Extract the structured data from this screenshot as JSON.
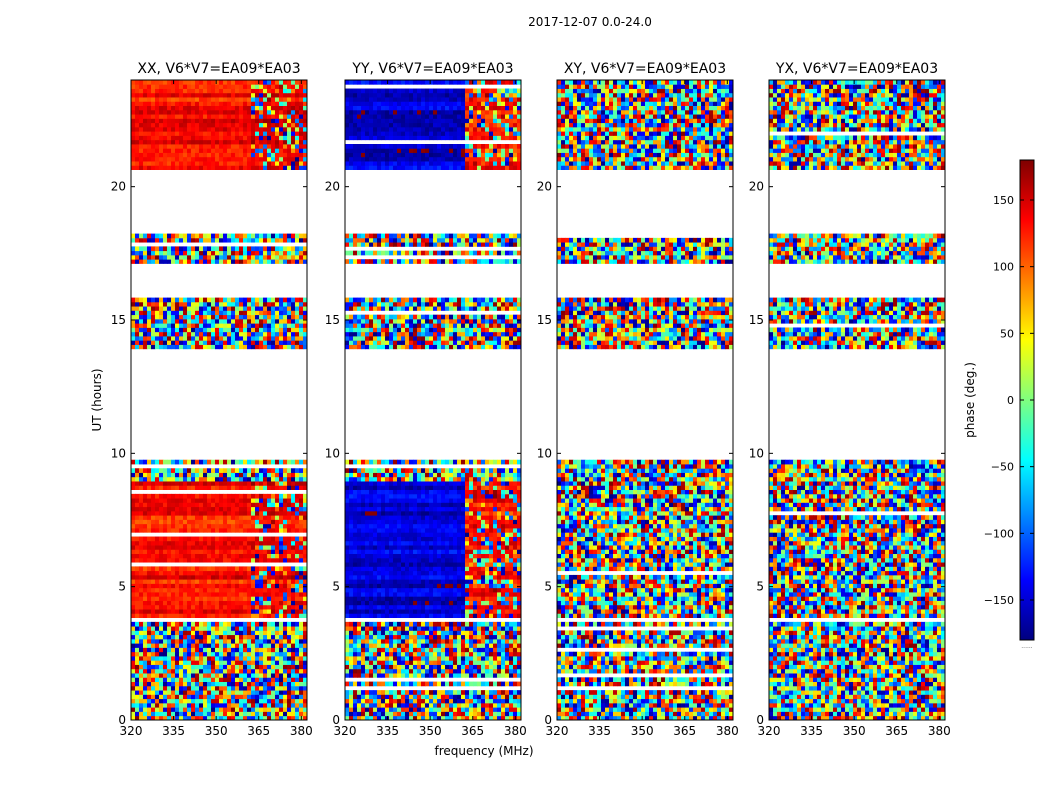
{
  "figure": {
    "suptitle": "2017-12-07 0.0-24.0"
  },
  "chart_data": {
    "type": "heatmap",
    "title": "2017-12-07 0.0-24.0",
    "xlabel": "frequency (MHz)",
    "ylabel": "UT (hours)",
    "xlim": [
      320,
      382
    ],
    "ylim": [
      0,
      24
    ],
    "xticks": [
      "320",
      "335",
      "350",
      "365",
      "380"
    ],
    "xtick_values": [
      320,
      335,
      350,
      365,
      380
    ],
    "yticks": [
      "0",
      "5",
      "10",
      "15",
      "20"
    ],
    "ytick_values": [
      0,
      5,
      10,
      15,
      20
    ],
    "panels": [
      {
        "title": "XX, V6*V7=EA09*EA03",
        "pol": "XX",
        "low_freq_phase": 130,
        "high_freq_phase": 140
      },
      {
        "title": "YY, V6*V7=EA09*EA03",
        "pol": "YY",
        "low_freq_phase": -150,
        "high_freq_phase": 130
      },
      {
        "title": "XY, V6*V7=EA09*EA03",
        "pol": "XY",
        "low_freq_phase": null,
        "high_freq_phase": null
      },
      {
        "title": "YX, V6*V7=EA09*EA03",
        "pol": "YX",
        "low_freq_phase": null,
        "high_freq_phase": null
      }
    ],
    "data_blocks_ut": [
      [
        0.0,
        3.7
      ],
      [
        3.8,
        8.9
      ],
      [
        9.0,
        9.8
      ],
      [
        14.0,
        15.8
      ],
      [
        17.1,
        18.3
      ],
      [
        20.6,
        24.0
      ]
    ],
    "colorbar": {
      "label": "phase (deg.)",
      "min": -180,
      "max": 180,
      "ticks": [
        "150",
        "100",
        "50",
        "0",
        "−50",
        "−100",
        "−150"
      ],
      "tick_values": [
        150,
        100,
        50,
        0,
        -50,
        -100,
        -150
      ],
      "colormap": "jet",
      "footer": "......"
    }
  },
  "colors": {
    "axes": "#000000",
    "jet": [
      "#00007f",
      "#0000ff",
      "#007fff",
      "#00ffff",
      "#7fff7f",
      "#ffff00",
      "#ff7f00",
      "#ff0000",
      "#7f0000"
    ]
  }
}
